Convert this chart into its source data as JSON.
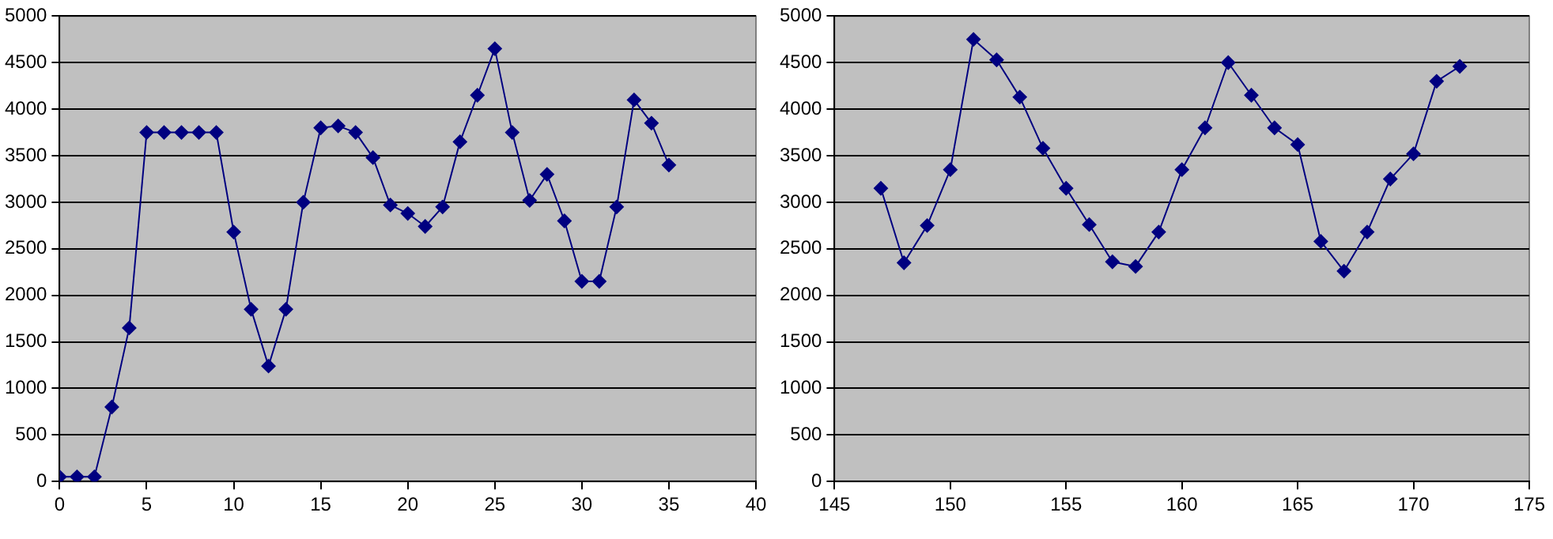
{
  "chart_data": [
    {
      "type": "line",
      "x": [
        0,
        1,
        2,
        3,
        4,
        5,
        6,
        7,
        8,
        9,
        10,
        11,
        12,
        13,
        14,
        15,
        16,
        17,
        18,
        19,
        20,
        21,
        22,
        23,
        24,
        25,
        26,
        27,
        28,
        29,
        30,
        31,
        32,
        33,
        34,
        35
      ],
      "series": [
        {
          "color": "#000080",
          "values": [
            50,
            50,
            50,
            800,
            1650,
            3750,
            3750,
            3750,
            3750,
            3750,
            2680,
            1850,
            1240,
            1850,
            3000,
            3800,
            3820,
            3750,
            3480,
            2970,
            2880,
            2740,
            2950,
            3650,
            4150,
            4650,
            3750,
            3020,
            3300,
            2800,
            2150,
            2150,
            2950,
            4100,
            3850,
            3400
          ]
        }
      ],
      "xlim": [
        0,
        40
      ],
      "xticks": [
        0,
        5,
        10,
        15,
        20,
        25,
        30,
        35,
        40
      ],
      "ylim": [
        0,
        5000
      ],
      "yticks": [
        0,
        500,
        1000,
        1500,
        2000,
        2500,
        3000,
        3500,
        4000,
        4500,
        5000
      ],
      "grid": "y",
      "marker": "diamond",
      "line_style": "solid"
    },
    {
      "type": "line",
      "x": [
        147,
        148,
        149,
        150,
        151,
        152,
        153,
        154,
        155,
        156,
        157,
        158,
        159,
        160,
        161,
        162,
        163,
        164,
        165,
        166,
        167,
        168,
        169,
        170,
        171,
        172
      ],
      "series": [
        {
          "color": "#000080",
          "values": [
            3150,
            2350,
            2750,
            3350,
            4750,
            4530,
            4130,
            3580,
            3150,
            2760,
            2360,
            2310,
            2680,
            3350,
            3800,
            4500,
            4150,
            3800,
            3620,
            2580,
            2260,
            2680,
            3250,
            3520,
            4300,
            4460
          ]
        }
      ],
      "xlim": [
        145,
        175
      ],
      "xticks": [
        145,
        150,
        155,
        160,
        165,
        170,
        175
      ],
      "ylim": [
        0,
        5000
      ],
      "yticks": [
        0,
        500,
        1000,
        1500,
        2000,
        2500,
        3000,
        3500,
        4000,
        4500,
        5000
      ],
      "grid": "y",
      "marker": "diamond",
      "line_style": "solid"
    }
  ]
}
